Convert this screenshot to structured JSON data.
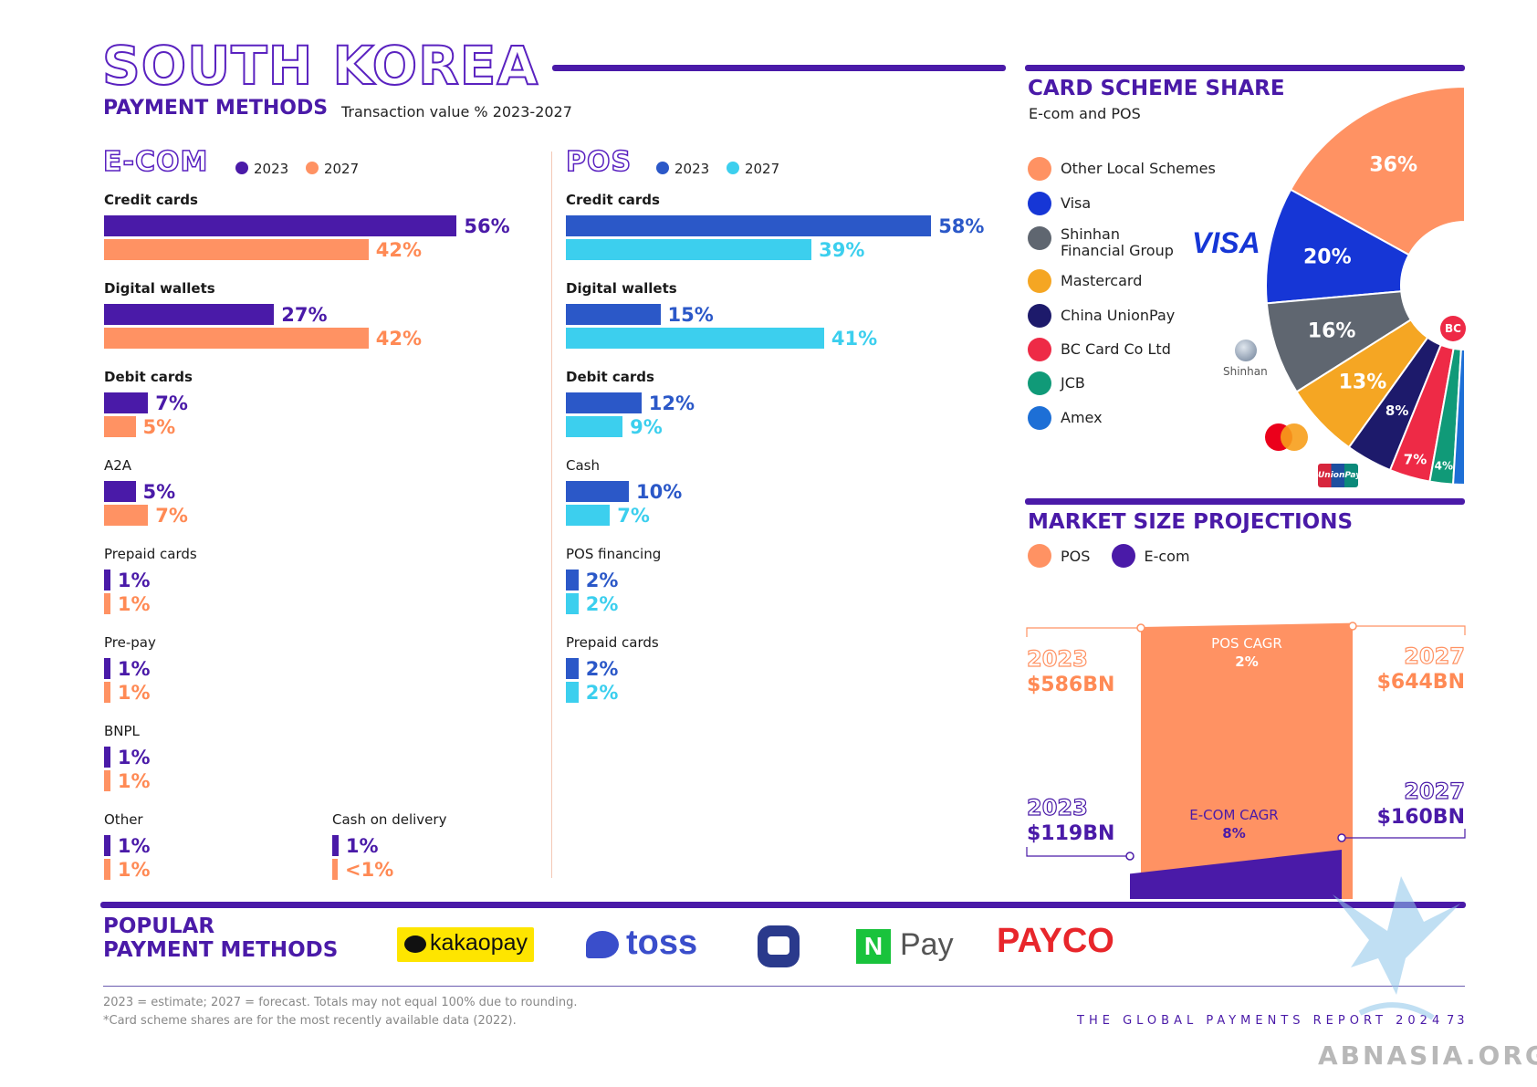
{
  "header": {
    "title": "SOUTH KOREA",
    "subtitle": "PAYMENT METHODS",
    "subtitle_note": "Transaction value % 2023-2027"
  },
  "legend": {
    "ecom_title": "E-COM",
    "pos_title": "POS",
    "year_2023": "2023",
    "year_2027": "2027"
  },
  "colors": {
    "ecom_2023": "#4a1aa8",
    "ecom_2027": "#ff9263",
    "pos_2023": "#2b58c8",
    "pos_2027": "#3ccfee",
    "accent": "#4a1aa8"
  },
  "chart_data": [
    {
      "type": "bar",
      "title": "E-COM",
      "categories": [
        "Credit cards",
        "Digital wallets",
        "Debit cards",
        "A2A",
        "Prepaid cards",
        "Pre-pay",
        "BNPL",
        "Other",
        "Cash on delivery"
      ],
      "series": [
        {
          "name": "2023",
          "values": [
            56,
            27,
            7,
            5,
            1,
            1,
            1,
            1,
            1
          ],
          "labels": [
            "56%",
            "27%",
            "7%",
            "5%",
            "1%",
            "1%",
            "1%",
            "1%",
            "1%"
          ]
        },
        {
          "name": "2027",
          "values": [
            42,
            42,
            5,
            7,
            1,
            1,
            1,
            1,
            0.5
          ],
          "labels": [
            "42%",
            "42%",
            "5%",
            "7%",
            "1%",
            "1%",
            "1%",
            "1%",
            "<1%"
          ]
        }
      ]
    },
    {
      "type": "bar",
      "title": "POS",
      "categories": [
        "Credit cards",
        "Digital wallets",
        "Debit cards",
        "Cash",
        "POS financing",
        "Prepaid cards"
      ],
      "series": [
        {
          "name": "2023",
          "values": [
            58,
            15,
            12,
            10,
            2,
            2
          ],
          "labels": [
            "58%",
            "15%",
            "12%",
            "10%",
            "2%",
            "2%"
          ]
        },
        {
          "name": "2027",
          "values": [
            39,
            41,
            9,
            7,
            2,
            2
          ],
          "labels": [
            "39%",
            "41%",
            "9%",
            "7%",
            "2%",
            "2%"
          ]
        }
      ]
    },
    {
      "type": "pie",
      "title": "CARD SCHEME SHARE",
      "subtitle": "E-com and POS",
      "categories": [
        "Other Local Schemes",
        "Visa",
        "Shinhan Financial Group",
        "Mastercard",
        "China UnionPay",
        "BC Card Co Ltd",
        "JCB",
        "Amex"
      ],
      "values": [
        36,
        20,
        16,
        13,
        8,
        7,
        4,
        2
      ],
      "labels": [
        "36%",
        "20%",
        "16%",
        "13%",
        "8%",
        "7%",
        "4%",
        "2%"
      ],
      "colors": [
        "#ff9263",
        "#1636d6",
        "#5f6670",
        "#f5a623",
        "#1d1a6b",
        "#ee2a46",
        "#109a78",
        "#1d6fd6"
      ]
    },
    {
      "type": "area",
      "title": "MARKET SIZE PROJECTIONS",
      "series": [
        {
          "name": "POS",
          "start_label": "2023",
          "start_value": "$586BN",
          "end_label": "2027",
          "end_value": "$644BN",
          "cagr_label": "POS CAGR",
          "cagr": "2%",
          "values": [
            586,
            644
          ]
        },
        {
          "name": "E-com",
          "start_label": "2023",
          "start_value": "$119BN",
          "end_label": "2027",
          "end_value": "$160BN",
          "cagr_label": "E-COM CAGR",
          "cagr": "8%",
          "values": [
            119,
            160
          ]
        }
      ]
    }
  ],
  "pie_logos": {
    "visa": "VISA",
    "shinhan": "Shinhan",
    "unionpay": "UnionPay",
    "bc": "BC"
  },
  "popular": {
    "title_line1": "POPULAR",
    "title_line2": "PAYMENT METHODS",
    "kakaopay": "kakaopay",
    "toss": "toss",
    "npay_n": "N",
    "npay_pay": "Pay",
    "payco": "PAYCO"
  },
  "footer": {
    "note1": "2023 = estimate; 2027 = forecast. Totals may not equal 100% due to rounding.",
    "note2": "*Card scheme shares are for the most recently available data (2022).",
    "report": "THE GLOBAL PAYMENTS REPORT 2024",
    "page": "73",
    "watermark": "ABNASIA.ORG"
  }
}
